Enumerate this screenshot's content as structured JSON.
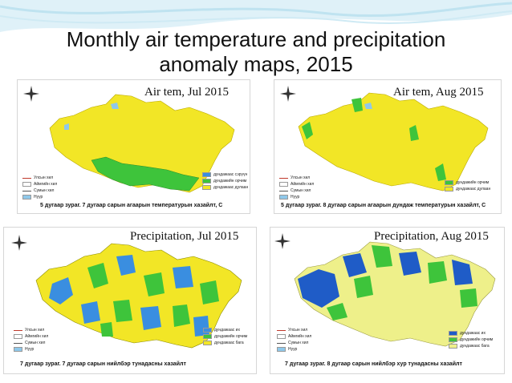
{
  "slide": {
    "title_line1": "Monthly air temperature and precipitation",
    "title_line2": "anomaly maps, 2015"
  },
  "colors": {
    "swoosh": "#bfe3f0",
    "yellow": "#f2e626",
    "green": "#3ec43b",
    "blue": "#3a8ee0",
    "darkblue": "#1f5cc7",
    "paleyellow": "#eef08a",
    "lake": "#8fc8ea"
  },
  "legend_common": [
    "Улсын хил",
    "Аймгийн хил",
    "Сумын хил",
    "Нуур"
  ],
  "maps": [
    {
      "label": "Air tem, Jul 2015",
      "caption": "5 дугаар зураг. 7 дугаар сарын агаарын температурын хазайлт, С",
      "legend": [
        "дундажаас сэрүүн",
        "дундажийн орчим",
        "дундажаас дулаан"
      ]
    },
    {
      "label": "Air tem, Aug 2015",
      "caption": "5 дугаар зураг. 8 дугаар сарын агаарын дундаж температурын хазайлт, С",
      "legend": [
        "дундажийн орчим",
        "дундажаас дулаан"
      ]
    },
    {
      "label": "Precipitation, Jul 2015",
      "caption": "7 дугаар зураг. 7 дугаар сарын нийлбэр тунадасны хазайлт",
      "legend": [
        "дундажаас их",
        "дундажийн орчим",
        "дундажаас бага"
      ]
    },
    {
      "label": "Precipitation, Aug 2015",
      "caption": "7 дугаар зураг. 8 дугаар сарын нийлбэр хур тунадасны хазайлт",
      "legend": [
        "дундажаас их",
        "дундажийн орчим",
        "дундажаас бага"
      ]
    }
  ],
  "compass": {
    "n": "N",
    "s": "S",
    "e": "E",
    "w": "W"
  }
}
